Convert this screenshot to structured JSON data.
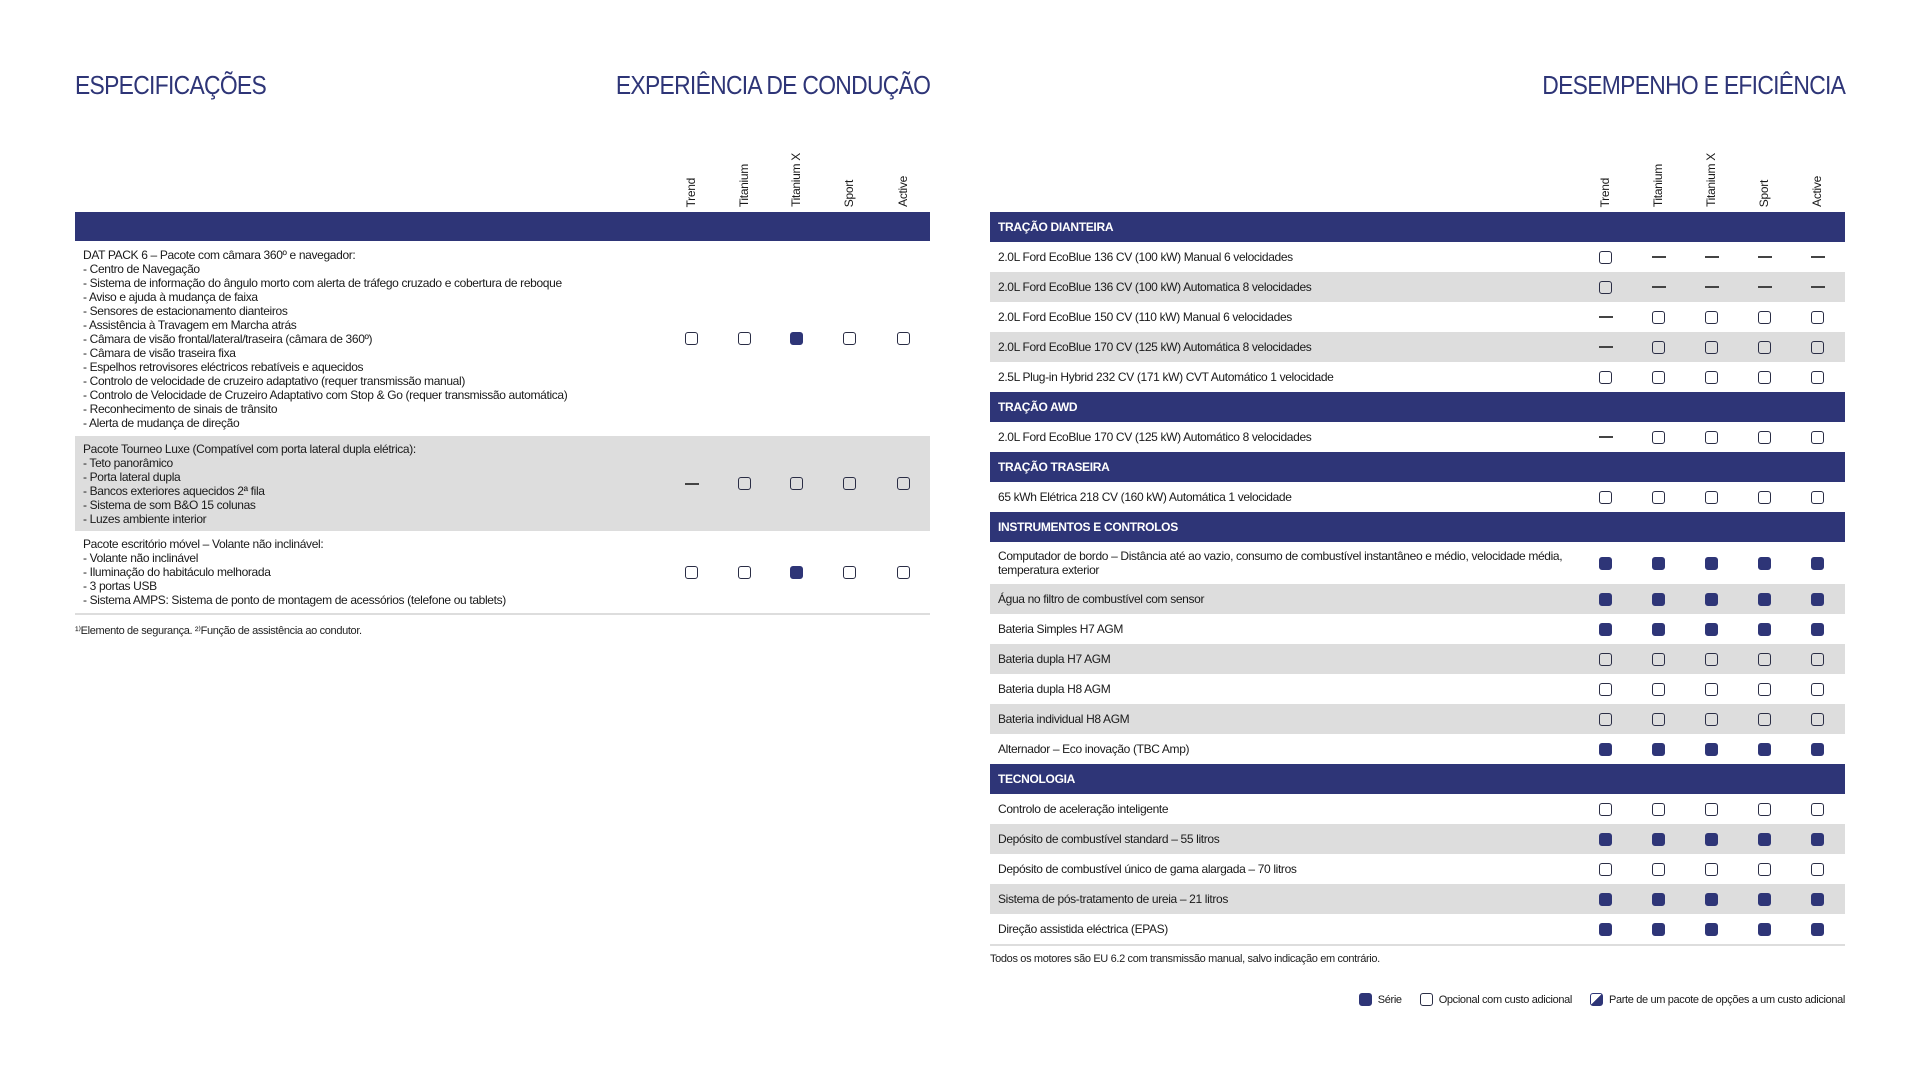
{
  "titles": {
    "left": "ESPECIFICAÇÕES",
    "middle": "EXPERIÊNCIA DE CONDUÇÃO",
    "right": "DESEMPENHO E EFICIÊNCIA"
  },
  "columns": [
    "Trend",
    "Titanium",
    "Titanium X",
    "Sport",
    "Active"
  ],
  "colors": {
    "navy": "#2e3577",
    "row_grey": "#dddddd"
  },
  "status_legend": {
    "F": "serie",
    "O": "opcional",
    "-": "nao-disponivel"
  },
  "left_table": {
    "header": "",
    "rows": [
      {
        "lines": [
          "DAT PACK 6 – Pacote com câmara 360º e navegador:",
          "- Centro de Navegação",
          "- Sistema de informação do ângulo morto com alerta de tráfego cruzado e cobertura de reboque",
          "- Aviso e ajuda à mudança de faixa",
          "- Sensores de estacionamento dianteiros",
          "- Assistência à Travagem em Marcha atrás",
          "- Câmara de visão frontal/lateral/traseira (câmara de 360º)",
          "- Câmara de visão traseira fixa",
          "- Espelhos retrovisores eléctricos rebatíveis e aquecidos",
          "- Controlo de velocidade de cruzeiro adaptativo (requer transmissão manual)",
          "- Controlo de Velocidade de Cruzeiro Adaptativo com Stop & Go (requer transmissão automática)",
          "- Reconhecimento de sinais de trânsito",
          "- Alerta de mudança de direção"
        ],
        "marks": [
          "O",
          "O",
          "F",
          "O",
          "O"
        ]
      },
      {
        "lines": [
          "Pacote Tourneo Luxe (Compatível com porta lateral dupla elétrica):",
          "- Teto panorâmico",
          "- Porta lateral dupla",
          "- Bancos exteriores aquecidos 2ª fila",
          "- Sistema de som B&O 15 colunas",
          "- Luzes ambiente interior"
        ],
        "marks": [
          "-",
          "O",
          "O",
          "O",
          "O"
        ]
      },
      {
        "lines": [
          "Pacote escritório móvel – Volante não inclinável:",
          "- Volante não inclinável",
          "- Iluminação do habitáculo melhorada",
          "- 3 portas USB",
          "- Sistema AMPS: Sistema de ponto de montagem de acessórios (telefone ou tablets)"
        ],
        "marks": [
          "O",
          "O",
          "F",
          "O",
          "O"
        ]
      }
    ],
    "footnote": "¹⁾Elemento de segurança. ²⁾Função de assistência ao condutor."
  },
  "right_table": {
    "sections": [
      {
        "title": "TRAÇÃO DIANTEIRA",
        "rows": [
          {
            "label": "2.0L Ford EcoBlue 136 CV (100 kW) Manual 6 velocidades",
            "marks": [
              "O",
              "-",
              "-",
              "-",
              "-"
            ]
          },
          {
            "label": "2.0L Ford EcoBlue 136 CV (100 kW) Automatica 8 velocidades",
            "marks": [
              "O",
              "-",
              "-",
              "-",
              "-"
            ]
          },
          {
            "label": "2.0L Ford EcoBlue 150 CV (110 kW) Manual 6 velocidades",
            "marks": [
              "-",
              "O",
              "O",
              "O",
              "O"
            ]
          },
          {
            "label": "2.0L Ford EcoBlue 170 CV (125 kW)  Automática 8 velocidades",
            "marks": [
              "-",
              "O",
              "O",
              "O",
              "O"
            ]
          },
          {
            "label": "2.5L Plug-in Hybrid 232 CV (171 kW) CVT Automático 1 velocidade",
            "marks": [
              "O",
              "O",
              "O",
              "O",
              "O"
            ]
          }
        ]
      },
      {
        "title": "TRAÇÃO AWD",
        "rows": [
          {
            "label": "2.0L Ford EcoBlue 170 CV (125 kW) Automático 8 velocidades",
            "marks": [
              "-",
              "O",
              "O",
              "O",
              "O"
            ]
          }
        ]
      },
      {
        "title": "TRAÇÃO TRASEIRA",
        "rows": [
          {
            "label": "65 kWh Elétrica 218 CV (160 kW) Automática 1 velocidade",
            "marks": [
              "O",
              "O",
              "O",
              "O",
              "O"
            ]
          }
        ]
      },
      {
        "title": "INSTRUMENTOS E CONTROLOS",
        "rows": [
          {
            "label": "Computador de bordo – Distância até ao vazio, consumo de combustível instantâneo e médio, velocidade média, temperatura exterior",
            "marks": [
              "F",
              "F",
              "F",
              "F",
              "F"
            ]
          },
          {
            "label": "Água no filtro de combustível com sensor",
            "marks": [
              "F",
              "F",
              "F",
              "F",
              "F"
            ]
          },
          {
            "label": "Bateria Simples H7 AGM",
            "marks": [
              "F",
              "F",
              "F",
              "F",
              "F"
            ]
          },
          {
            "label": "Bateria dupla H7 AGM",
            "marks": [
              "O",
              "O",
              "O",
              "O",
              "O"
            ]
          },
          {
            "label": "Bateria dupla H8 AGM",
            "marks": [
              "O",
              "O",
              "O",
              "O",
              "O"
            ]
          },
          {
            "label": "Bateria individual H8 AGM",
            "marks": [
              "O",
              "O",
              "O",
              "O",
              "O"
            ]
          },
          {
            "label": "Alternador – Eco inovação (TBC Amp)",
            "marks": [
              "F",
              "F",
              "F",
              "F",
              "F"
            ]
          }
        ]
      },
      {
        "title": "TECNOLOGIA",
        "rows": [
          {
            "label": "Controlo de aceleração inteligente",
            "marks": [
              "O",
              "O",
              "O",
              "O",
              "O"
            ]
          },
          {
            "label": "Depósito de combustível standard – 55 litros",
            "marks": [
              "F",
              "F",
              "F",
              "F",
              "F"
            ]
          },
          {
            "label": "Depósito de combustível único de gama alargada – 70 litros",
            "marks": [
              "O",
              "O",
              "O",
              "O",
              "O"
            ]
          },
          {
            "label": "Sistema de pós-tratamento de ureia – 21 litros",
            "marks": [
              "F",
              "F",
              "F",
              "F",
              "F"
            ]
          },
          {
            "label": "Direção assistida eléctrica (EPAS)",
            "marks": [
              "F",
              "F",
              "F",
              "F",
              "F"
            ]
          }
        ]
      }
    ],
    "footnote": "Todos os motores são EU 6.2 com transmissão manual, salvo indicação em contrário."
  },
  "legend": {
    "serie": "Série",
    "opcional": "Opcional com custo adicional",
    "pacote": "Parte de um pacote de opções a um custo adicional"
  }
}
